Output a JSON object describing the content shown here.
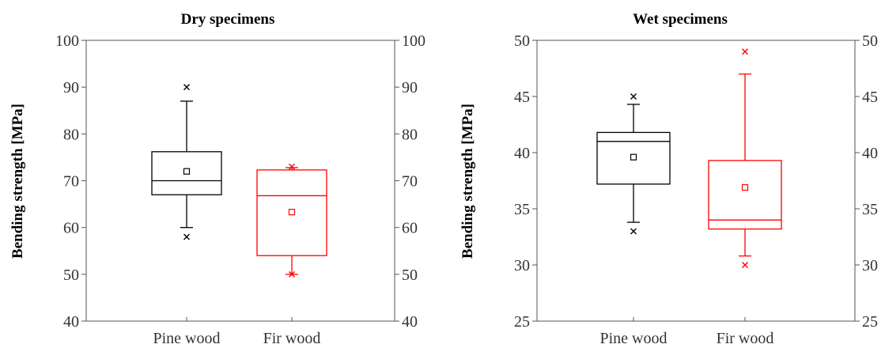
{
  "chart_data": [
    {
      "type": "box",
      "title": "Dry specimens",
      "xlabel": "",
      "ylabel": "Bending strength [MPa]",
      "ylim": [
        40,
        100
      ],
      "yticks": [
        "40",
        "50",
        "60",
        "70",
        "80",
        "90",
        "100"
      ],
      "categories": [
        "Pine wood",
        "Fir wood"
      ],
      "series": [
        {
          "color": "#000000",
          "whisker_low": 60,
          "q1": 67,
          "median": 70,
          "q3": 76.2,
          "whisker_high": 87,
          "mean": 72,
          "outliers": [
            58,
            90
          ]
        },
        {
          "color": "#ff0000",
          "whisker_low": 50,
          "q1": 54,
          "median": 66.8,
          "q3": 72.3,
          "whisker_high": 72.8,
          "mean": 63.3,
          "outliers": [
            50,
            73
          ]
        }
      ]
    },
    {
      "type": "box",
      "title": "Wet specimens",
      "xlabel": "",
      "ylabel": "Bending strength [MPa]",
      "ylim": [
        25,
        50
      ],
      "yticks": [
        "25",
        "30",
        "35",
        "40",
        "45",
        "50"
      ],
      "categories": [
        "Pine wood",
        "Fir wood"
      ],
      "series": [
        {
          "color": "#000000",
          "whisker_low": 33.8,
          "q1": 37.2,
          "median": 41,
          "q3": 41.8,
          "whisker_high": 44.3,
          "mean": 39.6,
          "outliers": [
            33,
            45
          ]
        },
        {
          "color": "#ff0000",
          "whisker_low": 30.8,
          "q1": 33.2,
          "median": 34,
          "q3": 39.3,
          "whisker_high": 47,
          "mean": 36.9,
          "outliers": [
            30,
            49
          ]
        }
      ]
    }
  ]
}
